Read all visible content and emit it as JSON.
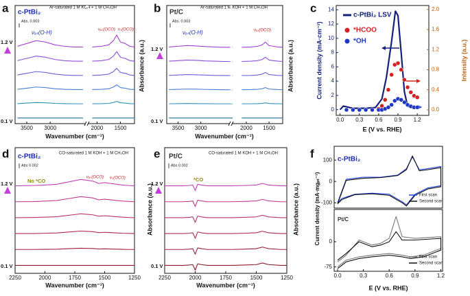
{
  "chart_data": [
    {
      "type": "line",
      "panel": "a",
      "title": "c-PtBi₂",
      "subtitle": "Ar-saturated 1 M KOH + 1 M CH₃OH",
      "scale_label": "Abs. 0.003",
      "annotations": [
        "νₐₛ(O-H)",
        "νₐₛ(OCO)",
        "νₛ(OCO)",
        "1.2 V",
        "0.1 V"
      ],
      "xlabel": "Wavenumber (cm⁻¹)",
      "ylabel": "Absorbance (a.u.)",
      "x": [
        3700,
        3500,
        3300,
        3100,
        2900,
        2700,
        2500,
        2300,
        2200,
        2100,
        1900,
        1750,
        1650,
        1580,
        1500,
        1400,
        1300,
        1200
      ],
      "xlim": [
        3750,
        1200
      ],
      "xticks": [
        3500,
        3000,
        2000,
        1500
      ],
      "ylim": [
        -0.4,
        8
      ],
      "series": [
        {
          "color": "#1f6b8f",
          "values": [
            0,
            0,
            0,
            0,
            0,
            0,
            0,
            0,
            null,
            0,
            0,
            0,
            0,
            0,
            0,
            0,
            0,
            0
          ]
        },
        {
          "color": "#2d8fb5",
          "values": [
            1.02,
            1.06,
            1.1,
            1.08,
            1.04,
            1.02,
            1.01,
            1.01,
            null,
            1.01,
            1.02,
            1.04,
            1.1,
            1.18,
            1.08,
            1.06,
            1.02,
            1.01
          ]
        },
        {
          "color": "#4a7fd6",
          "values": [
            2.04,
            2.12,
            2.2,
            2.16,
            2.08,
            2.04,
            2.02,
            2.02,
            null,
            2.02,
            2.04,
            2.08,
            2.2,
            2.36,
            2.16,
            2.12,
            2.04,
            2.02
          ]
        },
        {
          "color": "#6a62dc",
          "values": [
            3.06,
            3.18,
            3.3,
            3.24,
            3.12,
            3.06,
            3.03,
            3.03,
            null,
            3.03,
            3.06,
            3.12,
            3.3,
            3.54,
            3.24,
            3.18,
            3.06,
            3.03
          ]
        },
        {
          "color": "#8a4fd8",
          "values": [
            4.08,
            4.24,
            4.4,
            4.32,
            4.16,
            4.08,
            4.04,
            4.04,
            null,
            4.04,
            4.08,
            4.16,
            4.4,
            4.72,
            4.32,
            4.24,
            4.08,
            4.04
          ]
        },
        {
          "color": "#a33fd0",
          "values": [
            5.1,
            5.3,
            5.5,
            5.4,
            5.2,
            5.1,
            5.05,
            5.05,
            null,
            5.05,
            5.1,
            5.2,
            5.5,
            5.9,
            5.4,
            5.3,
            5.1,
            5.05
          ]
        }
      ]
    },
    {
      "type": "line",
      "panel": "b",
      "title": "Pt/C",
      "subtitle": "Ar-saturated 1 M KOH + 1 M CH₃OH",
      "scale_label": "Abs. 0.003",
      "annotations": [
        "νₐₛ(O-H)",
        "νₐₛ(OCO)",
        "1.2 V",
        "0.1 V"
      ],
      "xlabel": "Wavenumber (cm⁻¹)",
      "ylabel": "Absorbance (a.u.)",
      "x": [
        3700,
        3500,
        3300,
        3100,
        2900,
        2700,
        2500,
        2300,
        2200,
        2100,
        1900,
        1750,
        1650,
        1580,
        1500,
        1400,
        1300,
        1200
      ],
      "xlim": [
        3750,
        1200
      ],
      "xticks": [
        3500,
        3000,
        2000,
        1500
      ],
      "ylim": [
        -0.4,
        8
      ],
      "series": [
        {
          "color": "#1f6b8f",
          "values": [
            0,
            0,
            0,
            0,
            0,
            0,
            0,
            0,
            null,
            0,
            0,
            0,
            0,
            0,
            0,
            0,
            0,
            0
          ]
        },
        {
          "color": "#2d8fb5",
          "values": [
            1.01,
            1.02,
            1.03,
            1.02,
            1.02,
            1.01,
            1.01,
            1.01,
            null,
            1.01,
            1.01,
            1.02,
            1.04,
            1.08,
            1.03,
            1.02,
            1.01,
            1.01
          ]
        },
        {
          "color": "#4a7fd6",
          "values": [
            2.02,
            2.04,
            2.06,
            2.05,
            2.03,
            2.02,
            2.01,
            2.01,
            null,
            2.01,
            2.02,
            2.04,
            2.08,
            2.16,
            2.06,
            2.04,
            2.02,
            2.01
          ]
        },
        {
          "color": "#6a62dc",
          "values": [
            3.03,
            3.06,
            3.09,
            3.07,
            3.05,
            3.03,
            3.02,
            3.02,
            null,
            3.02,
            3.03,
            3.06,
            3.12,
            3.24,
            3.09,
            3.06,
            3.03,
            3.02
          ]
        },
        {
          "color": "#8a4fd8",
          "values": [
            4.04,
            4.08,
            4.12,
            4.1,
            4.06,
            4.04,
            4.02,
            4.02,
            null,
            4.02,
            4.04,
            4.08,
            4.16,
            4.32,
            4.12,
            4.08,
            4.04,
            4.02
          ]
        },
        {
          "color": "#a33fd0",
          "values": [
            5.05,
            5.1,
            5.15,
            5.12,
            5.08,
            5.05,
            5.03,
            5.03,
            null,
            5.03,
            5.05,
            5.1,
            5.2,
            5.4,
            5.15,
            5.1,
            5.05,
            5.03
          ]
        }
      ]
    },
    {
      "type": "line",
      "panel": "c",
      "xlabel": "E (V vs. RHE)",
      "ylabel": "Current density (mA·cm⁻²)",
      "y2label": "Intensity (a.u.)",
      "xlim": [
        -0.06,
        1.38
      ],
      "xticks": [
        {
          "value": 0,
          "label": "0.0"
        },
        0.3,
        0.6,
        0.9,
        1.2
      ],
      "ylim": [
        -0.8,
        14.6
      ],
      "yticks": [
        0,
        2,
        4,
        6,
        8,
        10,
        12,
        14
      ],
      "y2lim": [
        -0.11,
        2.08
      ],
      "y2ticks": [
        {
          "value": 0,
          "label": "0.0"
        },
        0.4,
        0.8,
        1.2,
        1.6,
        {
          "value": 2,
          "label": "2.0"
        }
      ],
      "series": [
        {
          "name": "c-PtBi₂ LSV",
          "color": "#14217a",
          "type": "line",
          "x": [
            0,
            0.05,
            0.2,
            0.4,
            0.55,
            0.65,
            0.72,
            0.8,
            0.86,
            0.9,
            0.95,
            1.0,
            1.05,
            1.1,
            1.2
          ],
          "values": [
            0,
            0.5,
            0.2,
            0.2,
            0.3,
            1.5,
            4.5,
            9.5,
            13.8,
            13.2,
            8,
            2.5,
            0.5,
            0.3,
            0.3
          ]
        },
        {
          "name": "*HCOO",
          "color": "#d42020",
          "type": "scatter",
          "axis": "y2",
          "x": [
            0.1,
            0.2,
            0.3,
            0.4,
            0.5,
            0.6,
            0.65,
            0.7,
            0.75,
            0.8,
            0.85,
            0.9,
            0.95,
            1.0,
            1.05,
            1.1,
            1.15,
            1.2
          ],
          "values": [
            0,
            0,
            0,
            0,
            0,
            0.02,
            0.08,
            0.2,
            0.4,
            0.7,
            0.9,
            0.93,
            0.8,
            0.6,
            0.45,
            0.35,
            0.28,
            0.25
          ]
        },
        {
          "name": "*OH",
          "color": "#2038c8",
          "type": "scatter",
          "axis": "y2",
          "x": [
            0.1,
            0.2,
            0.3,
            0.4,
            0.5,
            0.6,
            0.65,
            0.7,
            0.75,
            0.8,
            0.85,
            0.9,
            0.95,
            1.0,
            1.05,
            1.1,
            1.15,
            1.2
          ],
          "values": [
            0,
            0,
            0,
            0,
            0,
            0,
            0,
            0.02,
            0.05,
            0.1,
            0.18,
            0.22,
            0.2,
            0.15,
            0.1,
            0.07,
            0.05,
            0.05
          ]
        }
      ]
    },
    {
      "type": "line",
      "panel": "d",
      "title": "c-PtBi₂",
      "subtitle": "CO-saturated 1 M KOH + 1 M CH₃OH",
      "scale_label": "Abs 0.002",
      "annotations": [
        "No *CO",
        "νₐₛ(OCO)",
        "νₛ(OCO)",
        "1.2 V",
        "0.1 V"
      ],
      "xlabel": "Wavenumber (cm⁻¹)",
      "ylabel": "Absorbance (a.u.)",
      "x": [
        2250,
        2100,
        2000,
        1900,
        1800,
        1700,
        1600,
        1550,
        1500,
        1450,
        1400,
        1350,
        1300,
        1250
      ],
      "xlim": [
        2250,
        1250
      ],
      "xticks": [
        2250,
        2000,
        1750,
        1500,
        1250
      ],
      "ylim": [
        -0.5,
        7.4
      ],
      "series": [
        {
          "color": "#8b1a2a",
          "values": [
            0,
            0,
            0,
            0,
            0,
            0,
            0,
            0,
            0,
            0,
            0,
            0,
            0,
            0
          ]
        },
        {
          "color": "#a0203c",
          "values": [
            1,
            1,
            1.01,
            1.02,
            1.05,
            1.08,
            1.06,
            1.03,
            1.04,
            1.03,
            1.02,
            1.01,
            1,
            1
          ]
        },
        {
          "color": "#b02852",
          "values": [
            2,
            2,
            2.02,
            2.04,
            2.1,
            2.16,
            2.12,
            2.06,
            2.08,
            2.06,
            2.04,
            2.02,
            2.01,
            2
          ]
        },
        {
          "color": "#c03070",
          "values": [
            3,
            3.01,
            3.03,
            3.06,
            3.15,
            3.24,
            3.18,
            3.09,
            3.12,
            3.09,
            3.06,
            3.03,
            3.01,
            3
          ]
        },
        {
          "color": "#c8388f",
          "values": [
            4,
            4.01,
            4.04,
            4.08,
            4.2,
            4.32,
            4.24,
            4.12,
            4.16,
            4.12,
            4.08,
            4.04,
            4.02,
            4
          ]
        },
        {
          "color": "#c040b8",
          "values": [
            5,
            5.02,
            5.05,
            5.1,
            5.25,
            5.4,
            5.3,
            5.15,
            5.2,
            5.15,
            5.1,
            5.05,
            5.02,
            5
          ]
        }
      ]
    },
    {
      "type": "line",
      "panel": "e",
      "title": "Pt/C",
      "subtitle": "CO-saturated 1 M KOH + 1 M CH₃OH",
      "scale_label": "Abs 0.002",
      "annotations": [
        "*CO",
        "1.2 V",
        "0.1 V"
      ],
      "xlabel": "Wavenumber (cm⁻¹)",
      "ylabel": "Absorbance (a.u.)",
      "x": [
        2250,
        2100,
        2050,
        2020,
        2000,
        1980,
        1950,
        1900,
        1800,
        1700,
        1600,
        1500,
        1450,
        1400,
        1300,
        1250
      ],
      "xlim": [
        2250,
        1250
      ],
      "xticks": [
        2250,
        2000,
        1750,
        1500,
        1250
      ],
      "ylim": [
        -0.5,
        7.4
      ],
      "series": [
        {
          "color": "#8b1a2a",
          "values": [
            0,
            0,
            0.02,
            0.05,
            -0.3,
            0.1,
            0.05,
            0,
            0,
            0,
            0.02,
            0.05,
            0.15,
            0.05,
            0,
            0
          ]
        },
        {
          "color": "#a0203c",
          "values": [
            1,
            1,
            1.02,
            1.05,
            0.7,
            1.1,
            1.05,
            1,
            1,
            1,
            1.02,
            1.05,
            1.15,
            1.05,
            1,
            1
          ]
        },
        {
          "color": "#b02852",
          "values": [
            2,
            2,
            2.02,
            2.05,
            1.7,
            2.1,
            2.05,
            2,
            2,
            2,
            2.02,
            2.05,
            2.15,
            2.05,
            2,
            2
          ]
        },
        {
          "color": "#c03070",
          "values": [
            3,
            3,
            3.02,
            3.05,
            2.7,
            3.1,
            3.05,
            3,
            3,
            3,
            3.02,
            3.05,
            3.15,
            3.05,
            3,
            3
          ]
        },
        {
          "color": "#c8388f",
          "values": [
            4,
            4,
            4.02,
            4.05,
            3.7,
            4.1,
            4.05,
            4,
            4,
            4,
            4.02,
            4.05,
            4.15,
            4.05,
            4,
            4
          ]
        },
        {
          "color": "#c040b8",
          "values": [
            5,
            5,
            5.02,
            5.05,
            4.7,
            5.1,
            5.05,
            5,
            5,
            5,
            5.02,
            5.05,
            5.15,
            5.05,
            5,
            5
          ]
        }
      ]
    },
    {
      "type": "line",
      "panel": "f",
      "title": "c-PtBi₂",
      "ylabel": "Current density (mA·mgₚₜ⁻¹)",
      "xlim": [
        -0.04,
        1.22
      ],
      "ylim": [
        -125,
        165
      ],
      "yticks": [
        100,
        0,
        -100
      ],
      "x": [
        0,
        0.1,
        0.3,
        0.5,
        0.7,
        0.8,
        0.87,
        0.95,
        1.05,
        1.2,
        1.2,
        1.05,
        0.9,
        0.8,
        0.75,
        0.6,
        0.4,
        0.2,
        0.05,
        0
      ],
      "series": [
        {
          "name": "First scan",
          "color": "#1f3fe0",
          "values": [
            -100,
            10,
            20,
            20,
            30,
            60,
            115,
            55,
            60,
            70,
            -20,
            -30,
            -60,
            -110,
            -95,
            -60,
            -55,
            -60,
            -80,
            -100
          ]
        },
        {
          "name": "Second scan",
          "color": "#111111",
          "values": [
            -105,
            5,
            15,
            18,
            28,
            55,
            120,
            50,
            55,
            65,
            -25,
            -35,
            -65,
            -115,
            -100,
            -65,
            -58,
            -62,
            -85,
            -105
          ]
        }
      ]
    },
    {
      "type": "line",
      "title": "Pt/C",
      "xlabel": "E (V vs. RHE)",
      "xlim": [
        -0.04,
        1.22
      ],
      "xticks": [
        {
          "value": 0,
          "label": "0.0"
        },
        0.3,
        0.6,
        0.9,
        1.2
      ],
      "ylim": [
        -88,
        96
      ],
      "yticks": [
        0,
        -75
      ],
      "x": [
        0,
        0.1,
        0.25,
        0.4,
        0.5,
        0.6,
        0.68,
        0.75,
        0.9,
        1.2,
        1.2,
        1.0,
        0.85,
        0.75,
        0.6,
        0.4,
        0.25,
        0.1,
        0
      ],
      "series": [
        {
          "name": "First scan",
          "color": "#777777",
          "values": [
            -60,
            -40,
            5,
            -10,
            -5,
            10,
            75,
            15,
            10,
            15,
            -20,
            -40,
            -45,
            -40,
            -35,
            -40,
            -45,
            -55,
            -75
          ]
        },
        {
          "name": "Second scan",
          "color": "#111111",
          "values": [
            -55,
            -35,
            0,
            -15,
            -10,
            0,
            30,
            5,
            5,
            10,
            -25,
            -45,
            -50,
            -45,
            -40,
            -45,
            -50,
            -60,
            -80
          ]
        }
      ]
    }
  ]
}
